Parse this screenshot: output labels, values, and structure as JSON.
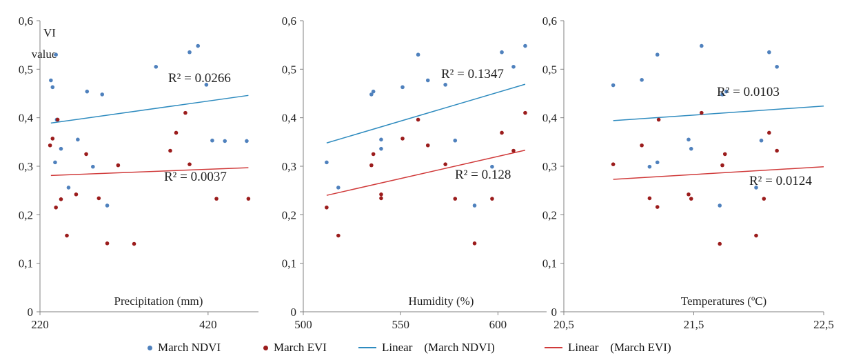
{
  "colors": {
    "ndvi": "#4f81bd",
    "evi": "#9b1c1c",
    "ndvi_trend": "#2e8bbf",
    "evi_trend": "#d03a3a",
    "axis": "#808080"
  },
  "chart_data": [
    {
      "type": "scatter",
      "xlabel": "Precipitation (mm)",
      "ylabel": "VI\nvalue",
      "xlim": [
        220,
        480
      ],
      "ylim": [
        0,
        0.6
      ],
      "xticks": [
        "220",
        "420"
      ],
      "xtick_values": [
        220,
        420
      ],
      "yticks": [
        "0",
        "0,1",
        "0,2",
        "0,3",
        "0,4",
        "0,5",
        "0,6"
      ],
      "series": [
        {
          "name": "March NDVI",
          "x": [
            233,
            235,
            238,
            239,
            240,
            245,
            254,
            265,
            276,
            283,
            294,
            300,
            358,
            398,
            408,
            418,
            425,
            440,
            466
          ],
          "y": [
            0.477,
            0.463,
            0.308,
            0.53,
            0.396,
            0.336,
            0.256,
            0.355,
            0.454,
            0.299,
            0.448,
            0.219,
            0.505,
            0.535,
            0.548,
            0.468,
            0.353,
            0.352,
            0.352
          ]
        },
        {
          "name": "March EVI",
          "x": [
            232,
            235,
            239,
            241,
            245,
            252,
            263,
            275,
            290,
            300,
            313,
            332,
            375,
            382,
            393,
            398,
            430,
            468
          ],
          "y": [
            0.343,
            0.357,
            0.215,
            0.396,
            0.232,
            0.157,
            0.242,
            0.325,
            0.234,
            0.141,
            0.302,
            0.14,
            0.332,
            0.369,
            0.41,
            0.304,
            0.233,
            0.233
          ]
        }
      ],
      "trendlines": [
        {
          "name": "Linear (March NDVI)",
          "x": [
            233,
            468
          ],
          "y": [
            0.389,
            0.446
          ],
          "r2": "R² = 0.0266"
        },
        {
          "name": "Linear (March EVI)",
          "x": [
            233,
            468
          ],
          "y": [
            0.281,
            0.297
          ],
          "r2": "R² = 0.0037"
        }
      ]
    },
    {
      "type": "scatter",
      "xlabel": "Humidity (%)",
      "ylabel": "",
      "xlim": [
        500,
        625
      ],
      "ylim": [
        0,
        0.6
      ],
      "xticks": [
        "500",
        "550",
        "600"
      ],
      "xtick_values": [
        500,
        550,
        600
      ],
      "yticks": [
        "0",
        "0,1",
        "0,2",
        "0,3",
        "0,4",
        "0,5",
        "0,6"
      ],
      "series": [
        {
          "name": "March NDVI",
          "x": [
            512,
            518,
            535,
            536,
            540,
            540,
            551,
            559,
            564,
            573,
            578,
            588,
            597,
            602,
            608,
            614
          ],
          "y": [
            0.308,
            0.256,
            0.448,
            0.454,
            0.336,
            0.355,
            0.463,
            0.53,
            0.477,
            0.468,
            0.353,
            0.219,
            0.299,
            0.535,
            0.505,
            0.548
          ]
        },
        {
          "name": "March EVI",
          "x": [
            512,
            518,
            535,
            536,
            540,
            540,
            551,
            559,
            564,
            573,
            578,
            588,
            597,
            602,
            608,
            614
          ],
          "y": [
            0.215,
            0.157,
            0.302,
            0.325,
            0.234,
            0.242,
            0.357,
            0.396,
            0.343,
            0.304,
            0.233,
            0.141,
            0.233,
            0.369,
            0.332,
            0.41
          ]
        }
      ],
      "trendlines": [
        {
          "name": "Linear (March NDVI)",
          "x": [
            512,
            614
          ],
          "y": [
            0.348,
            0.469
          ],
          "r2": "R² = 0.1347"
        },
        {
          "name": "Linear (March EVI)",
          "x": [
            512,
            614
          ],
          "y": [
            0.24,
            0.333
          ],
          "r2": "R² = 0.128"
        }
      ]
    },
    {
      "type": "scatter",
      "xlabel": "Temperatures (ºC)",
      "ylabel": "",
      "xlim": [
        20.5,
        22.5
      ],
      "ylim": [
        0,
        0.6
      ],
      "xticks": [
        "20,5",
        "21,5",
        "22,5"
      ],
      "xtick_values": [
        20.5,
        21.5,
        22.5
      ],
      "yticks": [
        "0",
        "0,1",
        "0,2",
        "0,3",
        "0,4",
        "0,5",
        "0,6"
      ],
      "series": [
        {
          "name": "March NDVI",
          "x": [
            20.88,
            21.1,
            21.16,
            21.22,
            21.22,
            21.46,
            21.48,
            21.56,
            21.7,
            21.72,
            21.75,
            21.98,
            22.02,
            22.08,
            22.14
          ],
          "y": [
            0.467,
            0.478,
            0.299,
            0.53,
            0.308,
            0.355,
            0.336,
            0.548,
            0.219,
            0.448,
            0.454,
            0.256,
            0.353,
            0.535,
            0.505
          ]
        },
        {
          "name": "March EVI",
          "x": [
            20.88,
            21.1,
            21.16,
            21.22,
            21.23,
            21.46,
            21.48,
            21.56,
            21.7,
            21.72,
            21.74,
            21.98,
            22.04,
            22.08,
            22.14
          ],
          "y": [
            0.304,
            0.343,
            0.234,
            0.216,
            0.396,
            0.242,
            0.233,
            0.41,
            0.14,
            0.302,
            0.325,
            0.157,
            0.233,
            0.369,
            0.332
          ]
        }
      ],
      "trendlines": [
        {
          "name": "Linear (March NDVI)",
          "x": [
            20.88,
            22.5
          ],
          "y": [
            0.394,
            0.424
          ],
          "r2": "R² = 0.0103"
        },
        {
          "name": "Linear (March EVI)",
          "x": [
            20.88,
            22.5
          ],
          "y": [
            0.273,
            0.299
          ],
          "r2": "R² = 0.0124"
        }
      ]
    }
  ],
  "legend": {
    "items": [
      {
        "label": "March NDVI",
        "kind": "dot",
        "color": "#4f81bd"
      },
      {
        "label": "March EVI",
        "kind": "dot",
        "color": "#9b1c1c"
      },
      {
        "label": "Linear    (March NDVI)",
        "kind": "line",
        "color": "#2e8bbf"
      },
      {
        "label": "Linear    (March EVI)",
        "kind": "line",
        "color": "#d03a3a"
      }
    ]
  }
}
